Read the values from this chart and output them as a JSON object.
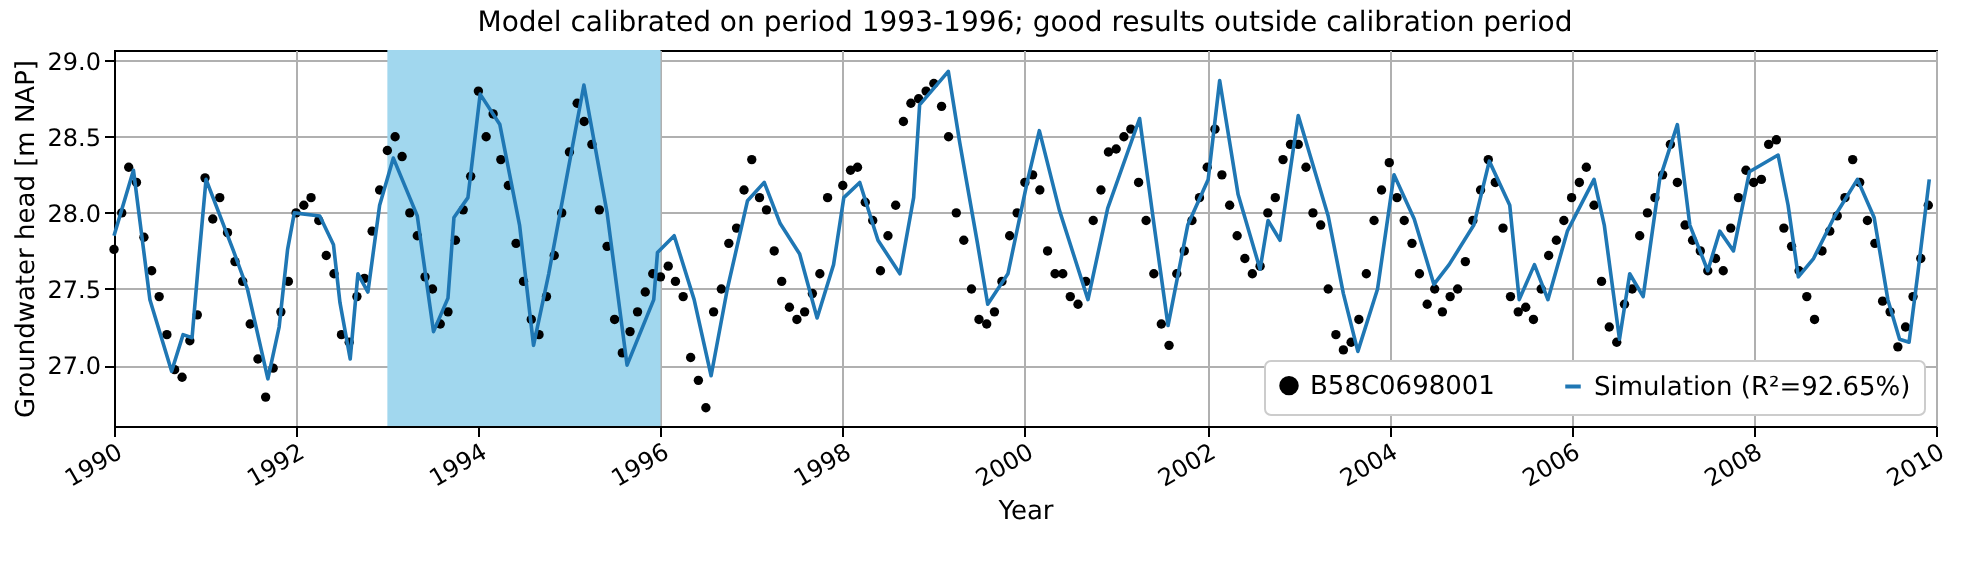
{
  "chart_data": {
    "type": "line",
    "title": "Model calibrated on period 1993-1996; good results outside calibration period",
    "xlabel": "Year",
    "ylabel": "Groundwater head [m NAP]",
    "xlim": [
      "1990",
      "2010"
    ],
    "xticks": [
      "1990",
      "1992",
      "1994",
      "1996",
      "1998",
      "2000",
      "2002",
      "2004",
      "2006",
      "2008",
      "2010"
    ],
    "ylim": [
      26.6,
      29.07
    ],
    "yticks": [
      {
        "value": 27,
        "label": "27.0"
      },
      {
        "value": 27.5,
        "label": "27.5"
      },
      {
        "value": 28,
        "label": "28.0"
      },
      {
        "value": 28.5,
        "label": "28.5"
      },
      {
        "value": 29,
        "label": "29.0"
      }
    ],
    "grid": true,
    "legend": "bottom right",
    "bands": [
      {
        "axis": "x",
        "from": "1993",
        "to": "1996",
        "color": "#a1d7ee"
      }
    ],
    "series": [
      {
        "name": "B58C0698001",
        "type": "scatter",
        "marker": "circle",
        "color": "#000000",
        "x": [
          "1990-01",
          "1990-02",
          "1990-03",
          "1990-04",
          "1990-05",
          "1990-06",
          "1990-07",
          "1990-08",
          "1990-09",
          "1990-10",
          "1990-11",
          "1990-12",
          "1991-01",
          "1991-02",
          "1991-03",
          "1991-04",
          "1991-05",
          "1991-06",
          "1991-07",
          "1991-08",
          "1991-09",
          "1991-10",
          "1991-11",
          "1991-12",
          "1992-01",
          "1992-02",
          "1992-03",
          "1992-04",
          "1992-05",
          "1992-06",
          "1992-07",
          "1992-08",
          "1992-09",
          "1992-10",
          "1992-11",
          "1992-12",
          "1993-01",
          "1993-02",
          "1993-03",
          "1993-04",
          "1993-05",
          "1993-06",
          "1993-07",
          "1993-08",
          "1993-09",
          "1993-10",
          "1993-11",
          "1993-12",
          "1994-01",
          "1994-02",
          "1994-03",
          "1994-04",
          "1994-05",
          "1994-06",
          "1994-07",
          "1994-08",
          "1994-09",
          "1994-10",
          "1994-11",
          "1994-12",
          "1995-01",
          "1995-02",
          "1995-03",
          "1995-04",
          "1995-05",
          "1995-06",
          "1995-07",
          "1995-08",
          "1995-09",
          "1995-10",
          "1995-11",
          "1995-12",
          "1996-01",
          "1996-02",
          "1996-03",
          "1996-04",
          "1996-05",
          "1996-06",
          "1996-07",
          "1996-08",
          "1996-09",
          "1996-10",
          "1996-11",
          "1996-12",
          "1997-01",
          "1997-02",
          "1997-03",
          "1997-04",
          "1997-05",
          "1997-06",
          "1997-07",
          "1997-08",
          "1997-09",
          "1997-10",
          "1997-11",
          "1998-01",
          "1998-02",
          "1998-03",
          "1998-04",
          "1998-05",
          "1998-06",
          "1998-07",
          "1998-08",
          "1998-09",
          "1998-10",
          "1998-11",
          "1998-12",
          "1999-01",
          "1999-02",
          "1999-03",
          "1999-04",
          "1999-05",
          "1999-06",
          "1999-07",
          "1999-08",
          "1999-09",
          "1999-10",
          "1999-11",
          "1999-12",
          "2000-01",
          "2000-02",
          "2000-03",
          "2000-04",
          "2000-05",
          "2000-06",
          "2000-07",
          "2000-08",
          "2000-09",
          "2000-10",
          "2000-11",
          "2000-12",
          "2001-01",
          "2001-02",
          "2001-03",
          "2001-04",
          "2001-05",
          "2001-06",
          "2001-07",
          "2001-08",
          "2001-09",
          "2001-10",
          "2001-11",
          "2001-12",
          "2002-01",
          "2002-02",
          "2002-03",
          "2002-04",
          "2002-05",
          "2002-06",
          "2002-07",
          "2002-08",
          "2002-09",
          "2002-10",
          "2002-11",
          "2002-12",
          "2003-01",
          "2003-02",
          "2003-03",
          "2003-04",
          "2003-05",
          "2003-06",
          "2003-07",
          "2003-08",
          "2003-09",
          "2003-10",
          "2003-11",
          "2003-12",
          "2004-01",
          "2004-02",
          "2004-03",
          "2004-04",
          "2004-05",
          "2004-06",
          "2004-07",
          "2004-08",
          "2004-09",
          "2004-10",
          "2004-11",
          "2004-12",
          "2005-01",
          "2005-02",
          "2005-03",
          "2005-04",
          "2005-05",
          "2005-06",
          "2005-07",
          "2005-08",
          "2005-09",
          "2005-10",
          "2005-11",
          "2005-12",
          "2006-01",
          "2006-02",
          "2006-03",
          "2006-04",
          "2006-05",
          "2006-06",
          "2006-07",
          "2006-08",
          "2006-09",
          "2006-10",
          "2006-11",
          "2006-12",
          "2007-01",
          "2007-02",
          "2007-03",
          "2007-04",
          "2007-05",
          "2007-06",
          "2007-07",
          "2007-08",
          "2007-09",
          "2007-10",
          "2007-11",
          "2007-12",
          "2008-01",
          "2008-02",
          "2008-03",
          "2008-04",
          "2008-05",
          "2008-06",
          "2008-07",
          "2008-08",
          "2008-09",
          "2008-10",
          "2008-11",
          "2008-12",
          "2009-01",
          "2009-02",
          "2009-03",
          "2009-04",
          "2009-05",
          "2009-06",
          "2009-07",
          "2009-08",
          "2009-09",
          "2009-10",
          "2009-11",
          "2009-12"
        ],
        "values": [
          27.76,
          28.0,
          28.3,
          28.2,
          27.84,
          27.62,
          27.45,
          27.2,
          26.97,
          26.92,
          27.16,
          27.33,
          28.23,
          27.96,
          28.1,
          27.87,
          27.68,
          27.55,
          27.27,
          27.04,
          26.79,
          26.98,
          27.35,
          27.55,
          28.0,
          28.05,
          28.1,
          27.95,
          27.72,
          27.6,
          27.2,
          27.15,
          27.45,
          27.57,
          27.88,
          28.15,
          28.41,
          28.5,
          28.37,
          28.0,
          27.85,
          27.58,
          27.5,
          27.27,
          27.35,
          27.82,
          28.02,
          28.24,
          28.8,
          28.5,
          28.65,
          28.35,
          28.18,
          27.8,
          27.55,
          27.3,
          27.2,
          27.45,
          27.72,
          28.0,
          28.4,
          28.72,
          28.6,
          28.45,
          28.02,
          27.78,
          27.3,
          27.08,
          27.22,
          27.35,
          27.48,
          27.6,
          27.58,
          27.65,
          27.55,
          27.45,
          27.05,
          26.9,
          26.72,
          27.35,
          27.5,
          27.8,
          27.9,
          28.15,
          28.35,
          28.1,
          28.02,
          27.75,
          27.55,
          27.38,
          27.3,
          27.35,
          27.47,
          27.6,
          28.1,
          28.18,
          28.28,
          28.3,
          28.07,
          27.95,
          27.62,
          27.85,
          28.05,
          28.6,
          28.72,
          28.75,
          28.8,
          28.85,
          28.7,
          28.5,
          28.0,
          27.82,
          27.5,
          27.3,
          27.27,
          27.35,
          27.55,
          27.85,
          28.0,
          28.2,
          28.25,
          28.15,
          27.75,
          27.6,
          27.6,
          27.45,
          27.4,
          27.55,
          27.95,
          28.15,
          28.4,
          28.42,
          28.5,
          28.55,
          28.2,
          27.95,
          27.6,
          27.27,
          27.13,
          27.6,
          27.75,
          27.95,
          28.1,
          28.3,
          28.55,
          28.25,
          28.05,
          27.85,
          27.7,
          27.6,
          27.65,
          28.0,
          28.1,
          28.35,
          28.45,
          28.45,
          28.3,
          28.0,
          27.92,
          27.5,
          27.2,
          27.1,
          27.15,
          27.3,
          27.6,
          27.95,
          28.15,
          28.33,
          28.1,
          27.95,
          27.8,
          27.6,
          27.4,
          27.5,
          27.35,
          27.45,
          27.5,
          27.68,
          27.95,
          28.15,
          28.35,
          28.2,
          27.9,
          27.45,
          27.35,
          27.38,
          27.3,
          27.5,
          27.72,
          27.82,
          27.95,
          28.1,
          28.2,
          28.3,
          28.05,
          27.55,
          27.25,
          27.15,
          27.4,
          27.5,
          27.85,
          28.0,
          28.1,
          28.25,
          28.45,
          28.2,
          27.92,
          27.82,
          27.75,
          27.62,
          27.7,
          27.62,
          27.9,
          28.1,
          28.28,
          28.2,
          28.22,
          28.45,
          28.48,
          27.9,
          27.78,
          27.62,
          27.45,
          27.3,
          27.75,
          27.88,
          27.98,
          28.1,
          28.35,
          28.2,
          27.95,
          27.8,
          27.42,
          27.35,
          27.12,
          27.25,
          27.45,
          27.7,
          28.05
        ]
      },
      {
        "name": "Simulation (R²=92.65%)",
        "type": "line",
        "marker": "none",
        "color": "#1f77b4",
        "x": [
          "1990-01-01",
          "1990-03-20",
          "1990-05-25",
          "1990-08-20",
          "1990-10-05",
          "1990-11-10",
          "1990-12-05",
          "1991-01-05",
          "1991-04-25",
          "1991-06-20",
          "1991-09-10",
          "1991-10-25",
          "1991-11-28",
          "1991-12-25",
          "1992-04-05",
          "1992-05-30",
          "1992-06-25",
          "1992-08-05",
          "1992-09-05",
          "1992-10-15",
          "1992-12-01",
          "1993-01-25",
          "1993-05-01",
          "1993-07-05",
          "1993-09-01",
          "1993-09-25",
          "1993-11-20",
          "1994-01-08",
          "1994-03-28",
          "1994-06-15",
          "1994-08-10",
          "1994-10-10",
          "1995-02-28",
          "1995-06-01",
          "1995-08-20",
          "1995-12-05",
          "1995-12-20",
          "1996-02-25",
          "1996-05-15",
          "1996-07-22",
          "1996-09-25",
          "1996-12-15",
          "1997-02-20",
          "1997-04-25",
          "1997-07-12",
          "1997-09-20",
          "1997-11-25",
          "1998-01-05",
          "1998-03-10",
          "1998-05-22",
          "1998-08-18",
          "1998-10-12",
          "1998-11-05",
          "1999-02-28",
          "1999-04-15",
          "1999-06-25",
          "1999-08-05",
          "1999-10-25",
          "2000-01-10",
          "2000-02-28",
          "2000-05-18",
          "2000-09-10",
          "2000-11-28",
          "2001-04-05",
          "2001-06-02",
          "2001-07-28",
          "2001-10-15",
          "2002-01-05",
          "2002-02-20",
          "2002-05-05",
          "2002-08-01",
          "2002-09-02",
          "2002-10-20",
          "2003-01-01",
          "2003-05-01",
          "2003-07-01",
          "2003-08-28",
          "2003-11-15",
          "2004-01-20",
          "2004-04-10",
          "2004-06-28",
          "2004-08-28",
          "2004-12-05",
          "2005-02-05",
          "2005-04-28",
          "2005-06-05",
          "2005-08-05",
          "2005-09-28",
          "2005-12-15",
          "2006-04-01",
          "2006-05-12",
          "2006-07-12",
          "2006-08-22",
          "2006-10-15",
          "2006-12-20",
          "2007-03-01",
          "2007-04-20",
          "2007-07-01",
          "2007-08-18",
          "2007-10-12",
          "2007-12-15",
          "2008-04-08",
          "2008-05-18",
          "2008-06-28",
          "2008-08-28",
          "2008-11-18",
          "2009-02-20",
          "2009-04-28",
          "2009-06-22",
          "2009-08-08",
          "2009-09-15",
          "2009-10-20",
          "2009-12-05"
        ],
        "values": [
          27.85,
          28.28,
          27.43,
          26.96,
          27.2,
          27.18,
          27.66,
          28.22,
          27.75,
          27.5,
          26.91,
          27.25,
          27.76,
          28.0,
          27.98,
          27.79,
          27.41,
          27.04,
          27.6,
          27.48,
          28.05,
          28.36,
          27.98,
          27.22,
          27.44,
          27.97,
          28.1,
          28.78,
          28.58,
          27.92,
          27.13,
          27.6,
          28.84,
          28.0,
          27.0,
          27.43,
          27.74,
          27.85,
          27.43,
          26.93,
          27.5,
          28.08,
          28.2,
          27.93,
          27.73,
          27.31,
          27.66,
          28.1,
          28.2,
          27.82,
          27.6,
          28.1,
          28.71,
          28.93,
          28.46,
          27.8,
          27.4,
          27.6,
          28.2,
          28.54,
          28.02,
          27.43,
          28.03,
          28.62,
          27.92,
          27.26,
          27.92,
          28.22,
          28.87,
          28.12,
          27.63,
          27.95,
          27.82,
          28.64,
          27.98,
          27.47,
          27.09,
          27.5,
          28.25,
          27.96,
          27.53,
          27.66,
          27.92,
          28.34,
          28.05,
          27.43,
          27.66,
          27.43,
          27.88,
          28.22,
          27.92,
          27.17,
          27.6,
          27.45,
          28.22,
          28.58,
          27.92,
          27.62,
          27.88,
          27.75,
          28.27,
          28.38,
          28.05,
          27.58,
          27.7,
          27.97,
          28.22,
          27.97,
          27.43,
          27.17,
          27.15,
          27.6,
          28.22
        ]
      }
    ]
  }
}
